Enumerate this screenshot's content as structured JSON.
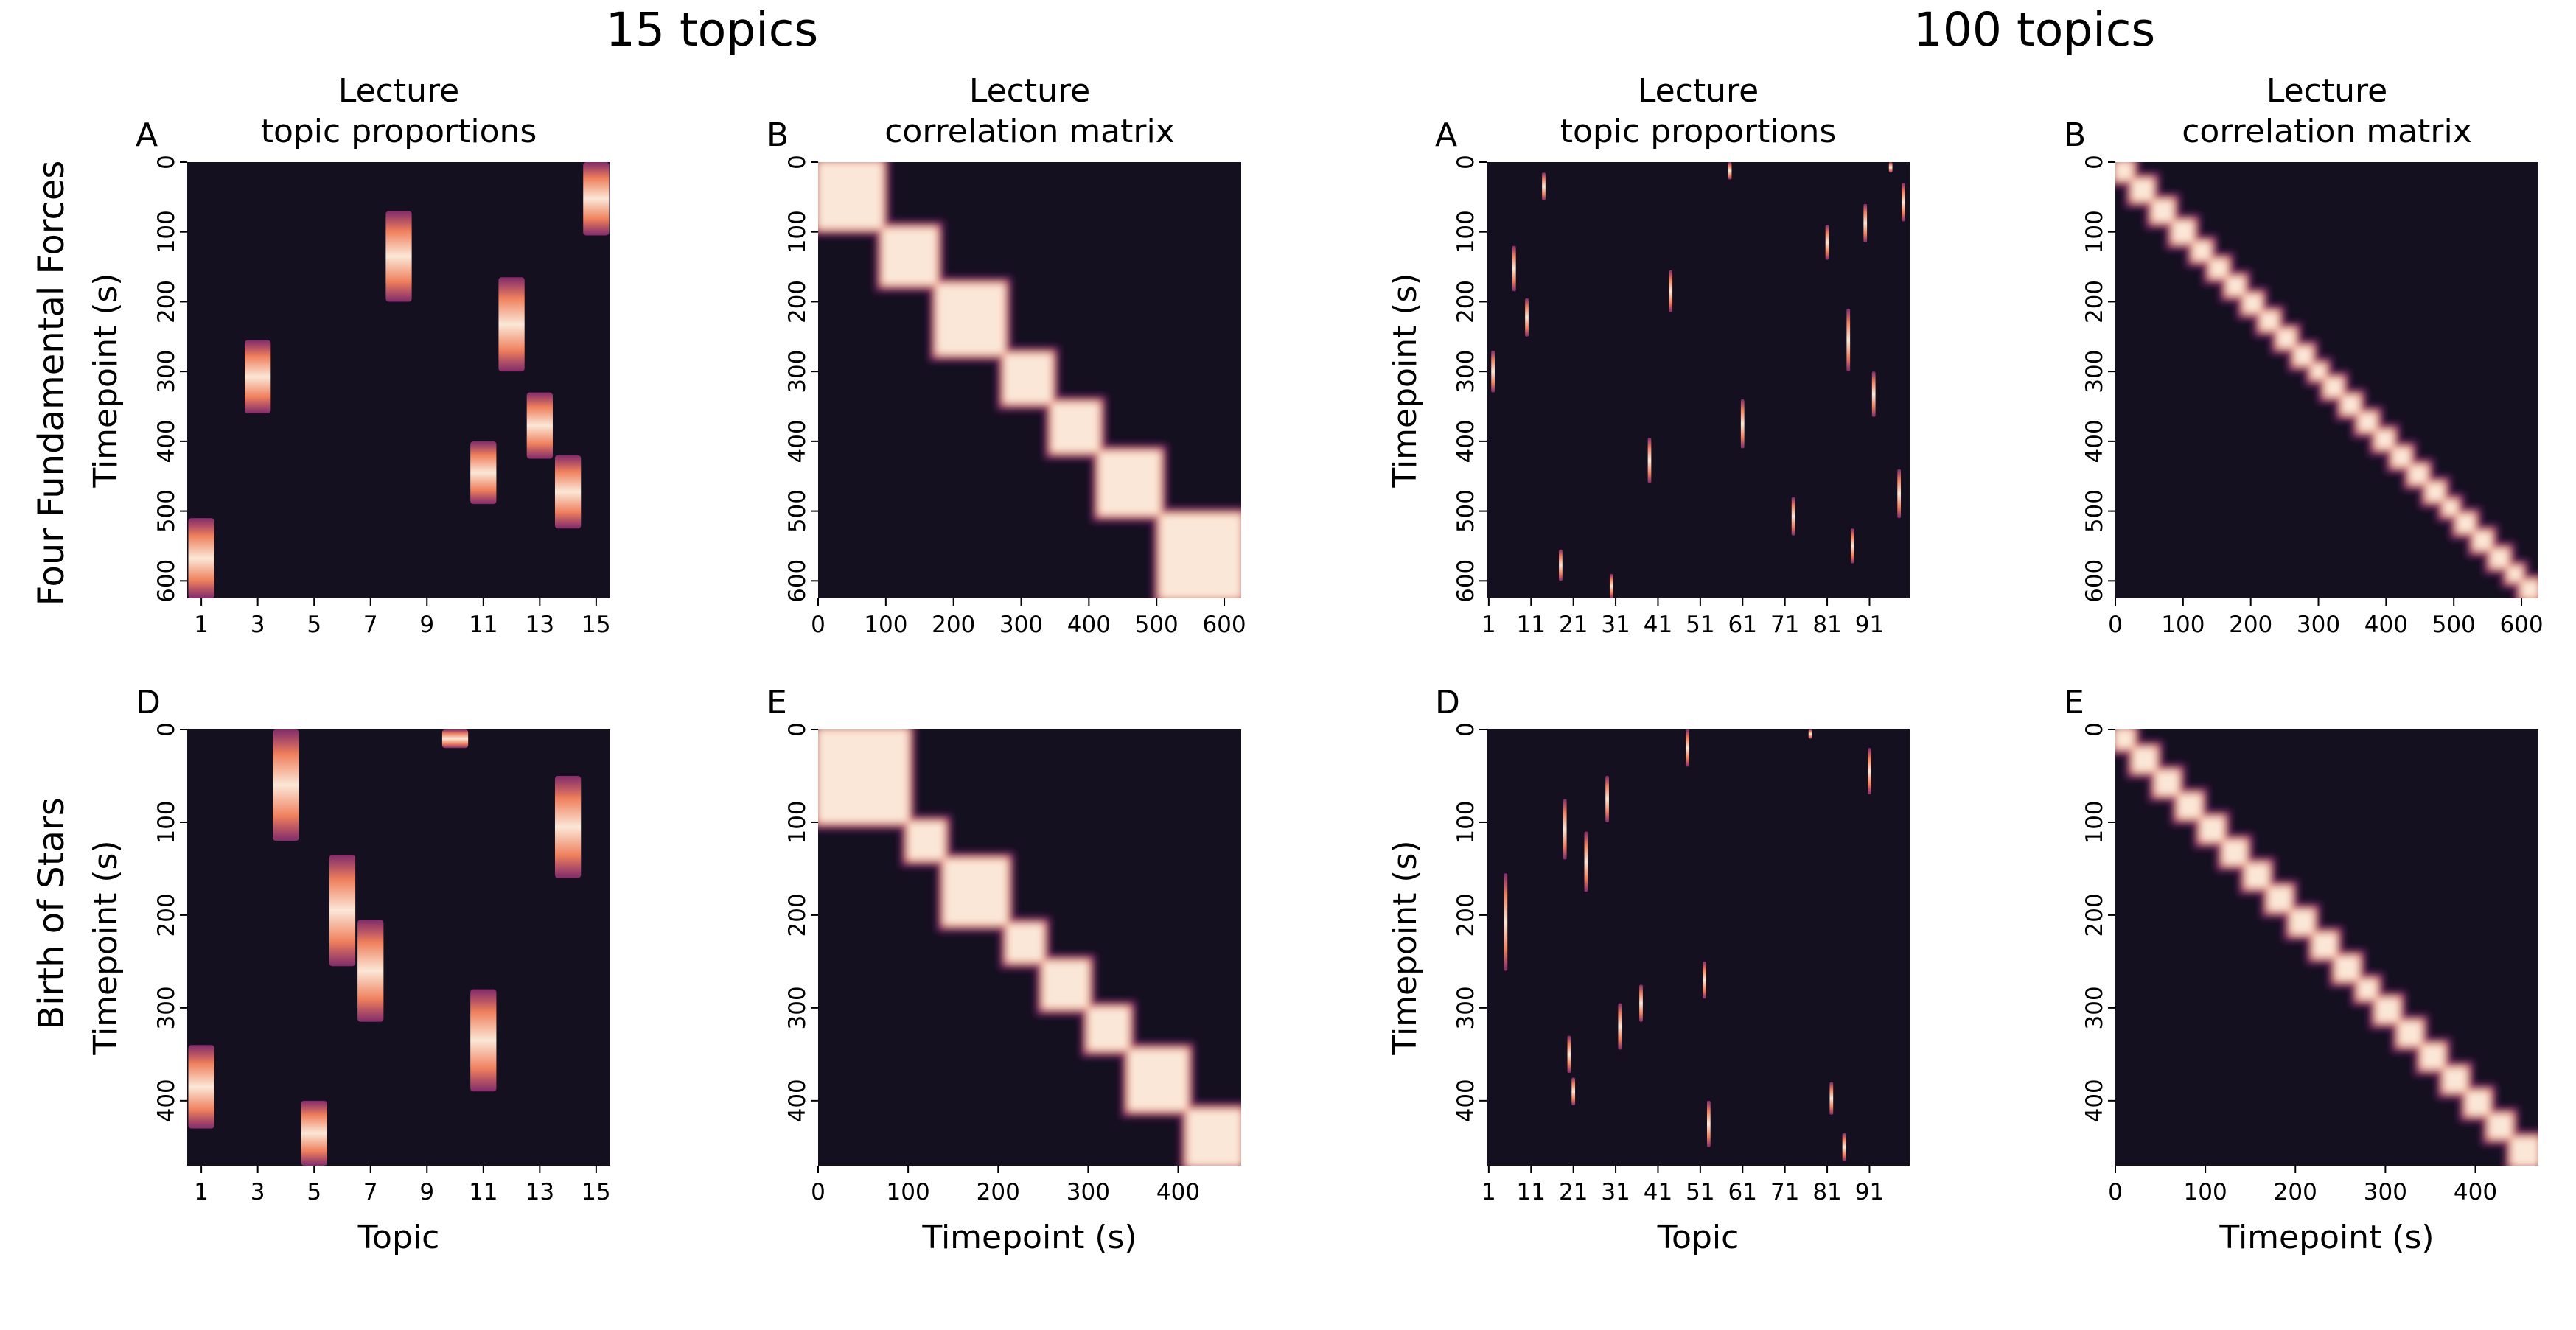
{
  "figure": {
    "group_titles": [
      "15 topics",
      "100 topics"
    ],
    "row_labels": [
      "Four Fundamental Forces",
      "Birth of Stars"
    ],
    "panel_title_line1": "Lecture",
    "topic_title_line2": "topic proportions",
    "corr_title_line2": "correlation matrix",
    "xlabel_topic": "Topic",
    "xlabel_time": "Timepoint (s)",
    "ylabel_time": "Timepoint (s)",
    "colors": {
      "background": "#14101f",
      "peak": "#fbe7d7",
      "mid": "#ef7f5c",
      "low": "#8e2f74",
      "edge": "#3a1845"
    }
  },
  "chart_data": [
    {
      "type": "heatmap",
      "letter": "A",
      "group": "15 topics",
      "lecture": "Four Fundamental Forces",
      "kind": "topics",
      "title": "Lecture\ntopic proportions",
      "xlabel": "",
      "ylabel": "Timepoint (s)",
      "n_topics": 15,
      "duration": 625,
      "xticks": [
        "1",
        "3",
        "5",
        "7",
        "9",
        "11",
        "13",
        "15"
      ],
      "yticks": [
        0,
        100,
        200,
        300,
        400,
        500,
        600
      ],
      "blocks": [
        {
          "topic": 1,
          "start": 510,
          "end": 625
        },
        {
          "topic": 3,
          "start": 255,
          "end": 360
        },
        {
          "topic": 8,
          "start": 70,
          "end": 200
        },
        {
          "topic": 11,
          "start": 400,
          "end": 490
        },
        {
          "topic": 12,
          "start": 165,
          "end": 300
        },
        {
          "topic": 13,
          "start": 330,
          "end": 425
        },
        {
          "topic": 14,
          "start": 420,
          "end": 525
        },
        {
          "topic": 15,
          "start": 0,
          "end": 105
        }
      ]
    },
    {
      "type": "heatmap",
      "letter": "B",
      "group": "15 topics",
      "lecture": "Four Fundamental Forces",
      "kind": "correlation",
      "title": "Lecture\ncorrelation matrix",
      "xlabel": "",
      "ylabel": "",
      "duration": 625,
      "xticks": [
        0,
        100,
        200,
        300,
        400,
        500,
        600
      ],
      "yticks": [
        0,
        100,
        200,
        300,
        400,
        500,
        600
      ],
      "segments": [
        {
          "start": 0,
          "end": 95
        },
        {
          "start": 95,
          "end": 175
        },
        {
          "start": 175,
          "end": 275
        },
        {
          "start": 275,
          "end": 345
        },
        {
          "start": 345,
          "end": 415
        },
        {
          "start": 415,
          "end": 505
        },
        {
          "start": 505,
          "end": 625
        }
      ]
    },
    {
      "type": "heatmap",
      "letter": "A",
      "group": "100 topics",
      "lecture": "Four Fundamental Forces",
      "kind": "topics",
      "title": "Lecture\ntopic proportions",
      "xlabel": "",
      "ylabel": "Timepoint (s)",
      "n_topics": 100,
      "duration": 625,
      "xticks": [
        "1",
        "11",
        "21",
        "31",
        "41",
        "51",
        "61",
        "71",
        "81",
        "91"
      ],
      "yticks": [
        0,
        100,
        200,
        300,
        400,
        500,
        600
      ],
      "blocks": [
        {
          "topic": 2,
          "start": 270,
          "end": 330
        },
        {
          "topic": 7,
          "start": 120,
          "end": 185
        },
        {
          "topic": 10,
          "start": 195,
          "end": 250
        },
        {
          "topic": 14,
          "start": 15,
          "end": 55
        },
        {
          "topic": 18,
          "start": 555,
          "end": 600
        },
        {
          "topic": 30,
          "start": 590,
          "end": 625
        },
        {
          "topic": 39,
          "start": 395,
          "end": 460
        },
        {
          "topic": 44,
          "start": 155,
          "end": 215
        },
        {
          "topic": 58,
          "start": 0,
          "end": 25
        },
        {
          "topic": 61,
          "start": 340,
          "end": 410
        },
        {
          "topic": 73,
          "start": 480,
          "end": 535
        },
        {
          "topic": 81,
          "start": 90,
          "end": 140
        },
        {
          "topic": 86,
          "start": 210,
          "end": 300
        },
        {
          "topic": 87,
          "start": 525,
          "end": 575
        },
        {
          "topic": 90,
          "start": 60,
          "end": 115
        },
        {
          "topic": 92,
          "start": 300,
          "end": 365
        },
        {
          "topic": 96,
          "start": 0,
          "end": 15
        },
        {
          "topic": 98,
          "start": 440,
          "end": 510
        },
        {
          "topic": 99,
          "start": 30,
          "end": 85
        }
      ]
    },
    {
      "type": "heatmap",
      "letter": "B",
      "group": "100 topics",
      "lecture": "Four Fundamental Forces",
      "kind": "correlation",
      "title": "Lecture\ncorrelation matrix",
      "xlabel": "",
      "ylabel": "",
      "duration": 625,
      "xticks": [
        0,
        100,
        200,
        300,
        400,
        500,
        600
      ],
      "yticks": [
        0,
        100,
        200,
        300,
        400,
        500,
        600
      ],
      "segments": [
        {
          "start": 0,
          "end": 25
        },
        {
          "start": 25,
          "end": 55
        },
        {
          "start": 55,
          "end": 85
        },
        {
          "start": 85,
          "end": 115
        },
        {
          "start": 115,
          "end": 140
        },
        {
          "start": 140,
          "end": 165
        },
        {
          "start": 165,
          "end": 190
        },
        {
          "start": 190,
          "end": 215
        },
        {
          "start": 215,
          "end": 240
        },
        {
          "start": 240,
          "end": 265
        },
        {
          "start": 265,
          "end": 290
        },
        {
          "start": 290,
          "end": 310
        },
        {
          "start": 310,
          "end": 335
        },
        {
          "start": 335,
          "end": 360
        },
        {
          "start": 360,
          "end": 385
        },
        {
          "start": 385,
          "end": 410
        },
        {
          "start": 410,
          "end": 435
        },
        {
          "start": 435,
          "end": 460
        },
        {
          "start": 460,
          "end": 485
        },
        {
          "start": 485,
          "end": 505
        },
        {
          "start": 505,
          "end": 530
        },
        {
          "start": 530,
          "end": 555
        },
        {
          "start": 555,
          "end": 580
        },
        {
          "start": 580,
          "end": 600
        },
        {
          "start": 600,
          "end": 625
        }
      ]
    },
    {
      "type": "heatmap",
      "letter": "D",
      "group": "15 topics",
      "lecture": "Birth of Stars",
      "kind": "topics",
      "title": "",
      "xlabel": "Topic",
      "ylabel": "Timepoint (s)",
      "n_topics": 15,
      "duration": 470,
      "xticks": [
        "1",
        "3",
        "5",
        "7",
        "9",
        "11",
        "13",
        "15"
      ],
      "yticks": [
        0,
        100,
        200,
        300,
        400
      ],
      "blocks": [
        {
          "topic": 1,
          "start": 340,
          "end": 430
        },
        {
          "topic": 4,
          "start": 0,
          "end": 120
        },
        {
          "topic": 5,
          "start": 400,
          "end": 470
        },
        {
          "topic": 6,
          "start": 135,
          "end": 255
        },
        {
          "topic": 7,
          "start": 205,
          "end": 315
        },
        {
          "topic": 10,
          "start": 0,
          "end": 20
        },
        {
          "topic": 11,
          "start": 280,
          "end": 390
        },
        {
          "topic": 14,
          "start": 50,
          "end": 160
        }
      ]
    },
    {
      "type": "heatmap",
      "letter": "E",
      "group": "15 topics",
      "lecture": "Birth of Stars",
      "kind": "correlation",
      "title": "",
      "xlabel": "Timepoint (s)",
      "ylabel": "",
      "duration": 470,
      "xticks": [
        0,
        100,
        200,
        300,
        400
      ],
      "yticks": [
        0,
        100,
        200,
        300,
        400
      ],
      "segments": [
        {
          "start": 0,
          "end": 100
        },
        {
          "start": 100,
          "end": 140
        },
        {
          "start": 140,
          "end": 210
        },
        {
          "start": 210,
          "end": 250
        },
        {
          "start": 250,
          "end": 300
        },
        {
          "start": 300,
          "end": 345
        },
        {
          "start": 345,
          "end": 410
        },
        {
          "start": 410,
          "end": 470
        }
      ]
    },
    {
      "type": "heatmap",
      "letter": "D",
      "group": "100 topics",
      "lecture": "Birth of Stars",
      "kind": "topics",
      "title": "",
      "xlabel": "Topic",
      "ylabel": "Timepoint (s)",
      "n_topics": 100,
      "duration": 470,
      "xticks": [
        "1",
        "11",
        "21",
        "31",
        "41",
        "51",
        "61",
        "71",
        "81",
        "91"
      ],
      "yticks": [
        0,
        100,
        200,
        300,
        400
      ],
      "blocks": [
        {
          "topic": 5,
          "start": 155,
          "end": 260
        },
        {
          "topic": 19,
          "start": 75,
          "end": 140
        },
        {
          "topic": 20,
          "start": 330,
          "end": 370
        },
        {
          "topic": 21,
          "start": 375,
          "end": 405
        },
        {
          "topic": 24,
          "start": 110,
          "end": 175
        },
        {
          "topic": 29,
          "start": 50,
          "end": 100
        },
        {
          "topic": 32,
          "start": 295,
          "end": 345
        },
        {
          "topic": 37,
          "start": 275,
          "end": 315
        },
        {
          "topic": 48,
          "start": 0,
          "end": 40
        },
        {
          "topic": 52,
          "start": 250,
          "end": 290
        },
        {
          "topic": 53,
          "start": 400,
          "end": 450
        },
        {
          "topic": 77,
          "start": 0,
          "end": 10
        },
        {
          "topic": 82,
          "start": 380,
          "end": 415
        },
        {
          "topic": 85,
          "start": 435,
          "end": 465
        },
        {
          "topic": 91,
          "start": 20,
          "end": 70
        }
      ]
    },
    {
      "type": "heatmap",
      "letter": "E",
      "group": "100 topics",
      "lecture": "Birth of Stars",
      "kind": "correlation",
      "title": "",
      "xlabel": "Timepoint (s)",
      "ylabel": "",
      "duration": 470,
      "xticks": [
        0,
        100,
        200,
        300,
        400
      ],
      "yticks": [
        0,
        100,
        200,
        300,
        400
      ],
      "segments": [
        {
          "start": 0,
          "end": 20
        },
        {
          "start": 20,
          "end": 45
        },
        {
          "start": 45,
          "end": 70
        },
        {
          "start": 70,
          "end": 95
        },
        {
          "start": 95,
          "end": 120
        },
        {
          "start": 120,
          "end": 145
        },
        {
          "start": 145,
          "end": 170
        },
        {
          "start": 170,
          "end": 195
        },
        {
          "start": 195,
          "end": 220
        },
        {
          "start": 220,
          "end": 245
        },
        {
          "start": 245,
          "end": 270
        },
        {
          "start": 270,
          "end": 290
        },
        {
          "start": 290,
          "end": 315
        },
        {
          "start": 315,
          "end": 340
        },
        {
          "start": 340,
          "end": 365
        },
        {
          "start": 365,
          "end": 390
        },
        {
          "start": 390,
          "end": 415
        },
        {
          "start": 415,
          "end": 440
        },
        {
          "start": 440,
          "end": 470
        }
      ]
    }
  ]
}
